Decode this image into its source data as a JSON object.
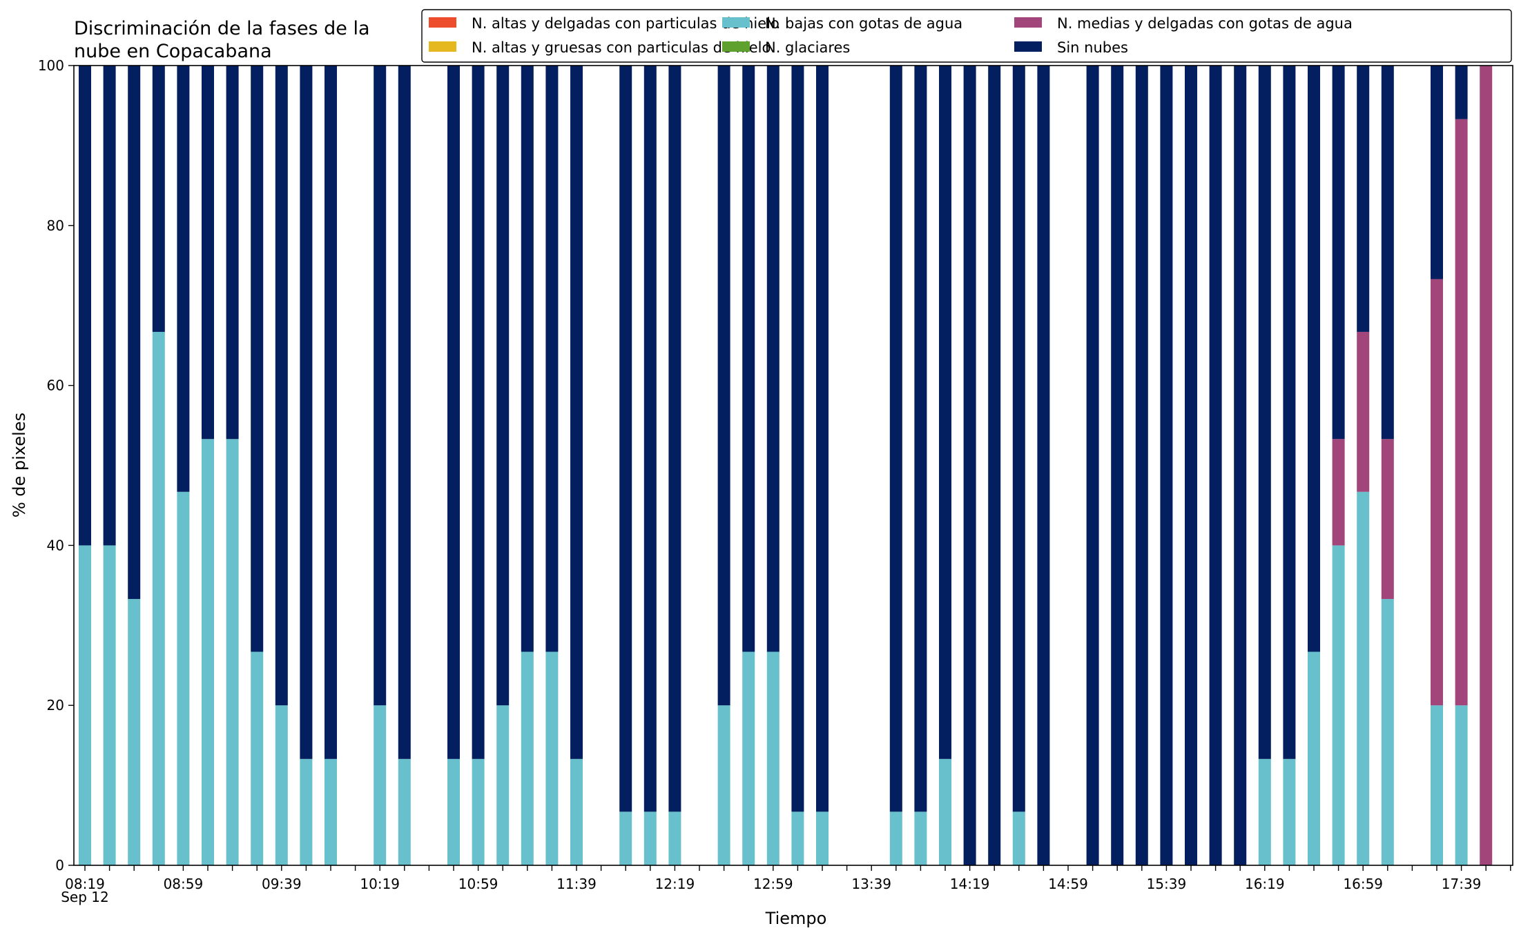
{
  "chart_data": {
    "type": "bar",
    "stacked": true,
    "title": [
      "Discriminación de la fases de la",
      "nube en Copacabana"
    ],
    "xlabel": "Tiempo",
    "ylabel": "% de pixeles",
    "ylim": [
      0,
      100
    ],
    "yticks": [
      0,
      20,
      40,
      60,
      80,
      100
    ],
    "x_date_annotation": "Sep 12",
    "x_range_slots": [
      0,
      58
    ],
    "xtick_labels": [
      {
        "slot": 0,
        "label": "08:19"
      },
      {
        "slot": 4,
        "label": "08:59"
      },
      {
        "slot": 8,
        "label": "09:39"
      },
      {
        "slot": 12,
        "label": "10:19"
      },
      {
        "slot": 16,
        "label": "10:59"
      },
      {
        "slot": 20,
        "label": "11:39"
      },
      {
        "slot": 24,
        "label": "12:19"
      },
      {
        "slot": 28,
        "label": "12:59"
      },
      {
        "slot": 32,
        "label": "13:39"
      },
      {
        "slot": 36,
        "label": "14:19"
      },
      {
        "slot": 40,
        "label": "14:59"
      },
      {
        "slot": 44,
        "label": "15:39"
      },
      {
        "slot": 48,
        "label": "16:19"
      },
      {
        "slot": 52,
        "label": "16:59"
      },
      {
        "slot": 56,
        "label": "17:39"
      }
    ],
    "grid": false,
    "legend_position": "top-right",
    "series": [
      {
        "name": "N. altas y delgadas con particulas de hielo",
        "color": "#ee4d2d"
      },
      {
        "name": "N. altas y gruesas con particulas de hielo",
        "color": "#e6b820"
      },
      {
        "name": "N. bajas con gotas de agua",
        "color": "#67c0cc"
      },
      {
        "name": "N. glaciares",
        "color": "#5fa12e"
      },
      {
        "name": "N. medias y delgadas con gotas de agua",
        "color": "#a2457b"
      },
      {
        "name": "Sin nubes",
        "color": "#031f5f"
      }
    ],
    "bars": [
      {
        "slot": 0,
        "low_water": 40,
        "medium_thin": 0,
        "clear": 60
      },
      {
        "slot": 1,
        "low_water": 40,
        "medium_thin": 0,
        "clear": 60
      },
      {
        "slot": 2,
        "low_water": 33.3,
        "medium_thin": 0,
        "clear": 66.7
      },
      {
        "slot": 3,
        "low_water": 66.7,
        "medium_thin": 0,
        "clear": 33.3
      },
      {
        "slot": 4,
        "low_water": 46.7,
        "medium_thin": 0,
        "clear": 53.3
      },
      {
        "slot": 5,
        "low_water": 53.3,
        "medium_thin": 0,
        "clear": 46.7
      },
      {
        "slot": 6,
        "low_water": 53.3,
        "medium_thin": 0,
        "clear": 46.7
      },
      {
        "slot": 7,
        "low_water": 26.7,
        "medium_thin": 0,
        "clear": 73.3
      },
      {
        "slot": 8,
        "low_water": 20,
        "medium_thin": 0,
        "clear": 80
      },
      {
        "slot": 9,
        "low_water": 13.3,
        "medium_thin": 0,
        "clear": 86.7
      },
      {
        "slot": 10,
        "low_water": 13.3,
        "medium_thin": 0,
        "clear": 86.7
      },
      {
        "slot": 12,
        "low_water": 20,
        "medium_thin": 0,
        "clear": 80
      },
      {
        "slot": 13,
        "low_water": 13.3,
        "medium_thin": 0,
        "clear": 86.7
      },
      {
        "slot": 15,
        "low_water": 13.3,
        "medium_thin": 0,
        "clear": 86.7
      },
      {
        "slot": 16,
        "low_water": 13.3,
        "medium_thin": 0,
        "clear": 86.7
      },
      {
        "slot": 17,
        "low_water": 20,
        "medium_thin": 0,
        "clear": 80
      },
      {
        "slot": 18,
        "low_water": 26.7,
        "medium_thin": 0,
        "clear": 73.3
      },
      {
        "slot": 19,
        "low_water": 26.7,
        "medium_thin": 0,
        "clear": 73.3
      },
      {
        "slot": 20,
        "low_water": 13.3,
        "medium_thin": 0,
        "clear": 86.7
      },
      {
        "slot": 22,
        "low_water": 6.7,
        "medium_thin": 0,
        "clear": 93.3
      },
      {
        "slot": 23,
        "low_water": 6.7,
        "medium_thin": 0,
        "clear": 93.3
      },
      {
        "slot": 24,
        "low_water": 6.7,
        "medium_thin": 0,
        "clear": 93.3
      },
      {
        "slot": 26,
        "low_water": 20,
        "medium_thin": 0,
        "clear": 80
      },
      {
        "slot": 27,
        "low_water": 26.7,
        "medium_thin": 0,
        "clear": 73.3
      },
      {
        "slot": 28,
        "low_water": 26.7,
        "medium_thin": 0,
        "clear": 73.3
      },
      {
        "slot": 29,
        "low_water": 6.7,
        "medium_thin": 0,
        "clear": 93.3
      },
      {
        "slot": 30,
        "low_water": 6.7,
        "medium_thin": 0,
        "clear": 93.3
      },
      {
        "slot": 33,
        "low_water": 6.7,
        "medium_thin": 0,
        "clear": 93.3
      },
      {
        "slot": 34,
        "low_water": 6.7,
        "medium_thin": 0,
        "clear": 93.3
      },
      {
        "slot": 35,
        "low_water": 13.3,
        "medium_thin": 0,
        "clear": 86.7
      },
      {
        "slot": 36,
        "low_water": 0,
        "medium_thin": 0,
        "clear": 100
      },
      {
        "slot": 37,
        "low_water": 0,
        "medium_thin": 0,
        "clear": 100
      },
      {
        "slot": 38,
        "low_water": 6.7,
        "medium_thin": 0,
        "clear": 93.3
      },
      {
        "slot": 39,
        "low_water": 0,
        "medium_thin": 0,
        "clear": 100
      },
      {
        "slot": 41,
        "low_water": 0,
        "medium_thin": 0,
        "clear": 100
      },
      {
        "slot": 42,
        "low_water": 0,
        "medium_thin": 0,
        "clear": 100
      },
      {
        "slot": 43,
        "low_water": 0,
        "medium_thin": 0,
        "clear": 100
      },
      {
        "slot": 44,
        "low_water": 0,
        "medium_thin": 0,
        "clear": 100
      },
      {
        "slot": 45,
        "low_water": 0,
        "medium_thin": 0,
        "clear": 100
      },
      {
        "slot": 46,
        "low_water": 0,
        "medium_thin": 0,
        "clear": 100
      },
      {
        "slot": 47,
        "low_water": 0,
        "medium_thin": 0,
        "clear": 100
      },
      {
        "slot": 48,
        "low_water": 13.3,
        "medium_thin": 0,
        "clear": 86.7
      },
      {
        "slot": 49,
        "low_water": 13.3,
        "medium_thin": 0,
        "clear": 86.7
      },
      {
        "slot": 50,
        "low_water": 26.7,
        "medium_thin": 0,
        "clear": 73.3
      },
      {
        "slot": 51,
        "low_water": 40,
        "medium_thin": 13.3,
        "clear": 46.7
      },
      {
        "slot": 52,
        "low_water": 46.7,
        "medium_thin": 20,
        "clear": 33.3
      },
      {
        "slot": 53,
        "low_water": 33.3,
        "medium_thin": 20,
        "clear": 46.7
      },
      {
        "slot": 55,
        "low_water": 20,
        "medium_thin": 53.3,
        "clear": 26.7
      },
      {
        "slot": 56,
        "low_water": 20,
        "medium_thin": 73.3,
        "clear": 6.7
      },
      {
        "slot": 57,
        "low_water": 0,
        "medium_thin": 100,
        "clear": 0
      }
    ]
  }
}
